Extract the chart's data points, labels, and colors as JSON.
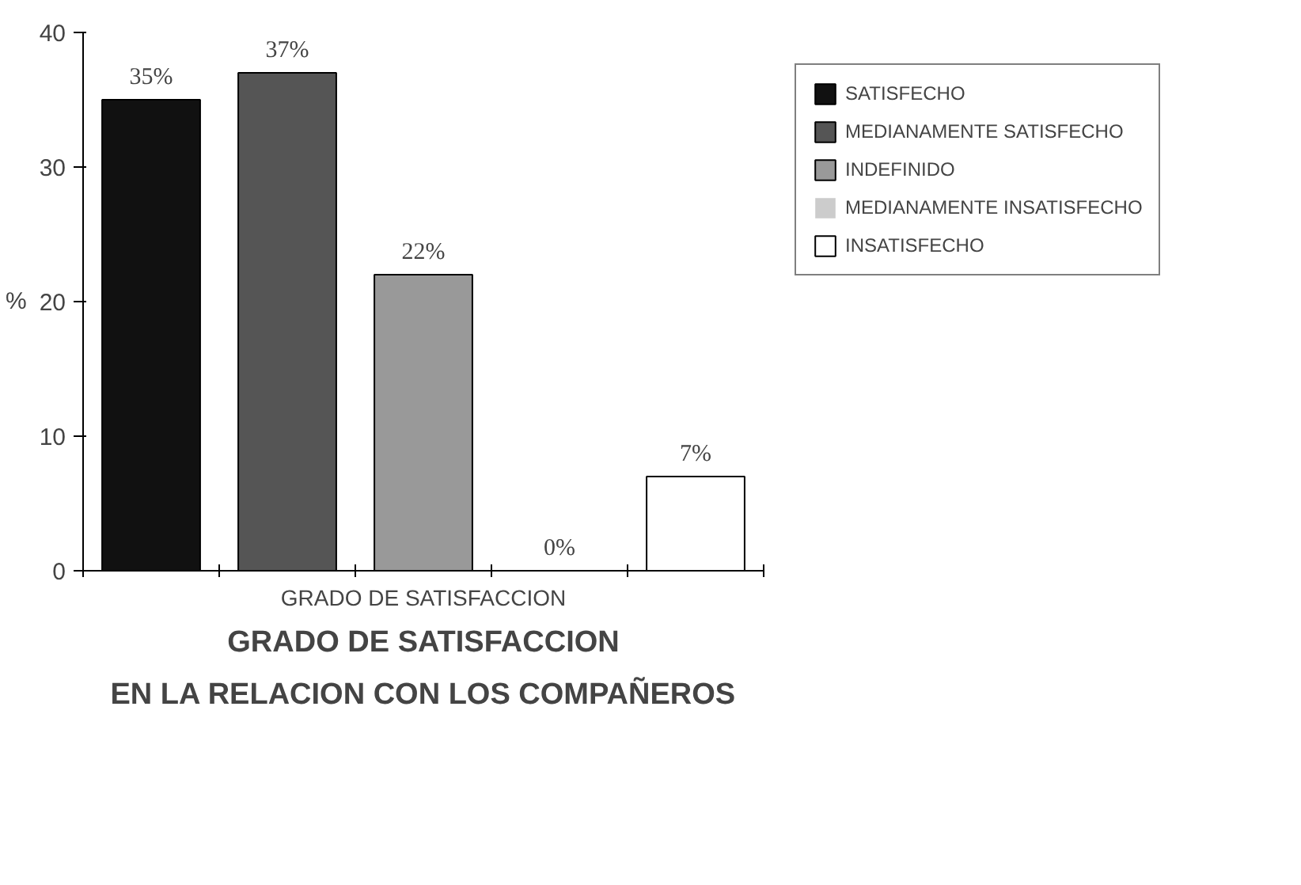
{
  "chart_data": {
    "type": "bar",
    "title": "GRADO DE SATISFACCION\nEN LA RELACION CON LOS COMPAÑEROS",
    "xlabel": "GRADO DE SATISFACCION",
    "ylabel": "%",
    "categories": [
      null,
      null,
      null,
      null,
      null
    ],
    "series": [
      {
        "name": "SATISFECHO",
        "color": "#111111",
        "values": [
          35,
          null,
          null,
          null,
          null
        ],
        "value_labels": [
          "35%",
          null,
          null,
          null,
          null
        ]
      },
      {
        "name": "MEDIANAMENTE SATISFECHO",
        "color": "#555555",
        "values": [
          null,
          37,
          null,
          null,
          null
        ],
        "value_labels": [
          null,
          "37%",
          null,
          null,
          null
        ]
      },
      {
        "name": "INDEFINIDO",
        "color": "#999999",
        "values": [
          null,
          null,
          22,
          null,
          null
        ],
        "value_labels": [
          null,
          null,
          "22%",
          null,
          null
        ]
      },
      {
        "name": "MEDIANAMENTE INSATISFECHO",
        "color": "#cccccc",
        "values": [
          null,
          null,
          null,
          0,
          null
        ],
        "value_labels": [
          null,
          null,
          null,
          "0%",
          null
        ]
      },
      {
        "name": "INSATISFECHO",
        "color": "#ffffff",
        "values": [
          null,
          null,
          null,
          null,
          7
        ],
        "value_labels": [
          null,
          null,
          null,
          null,
          "7%"
        ]
      }
    ],
    "ylim": [
      0,
      40
    ],
    "yticks": [
      0,
      10,
      20,
      30,
      40
    ],
    "grid": false,
    "legend": "right"
  }
}
